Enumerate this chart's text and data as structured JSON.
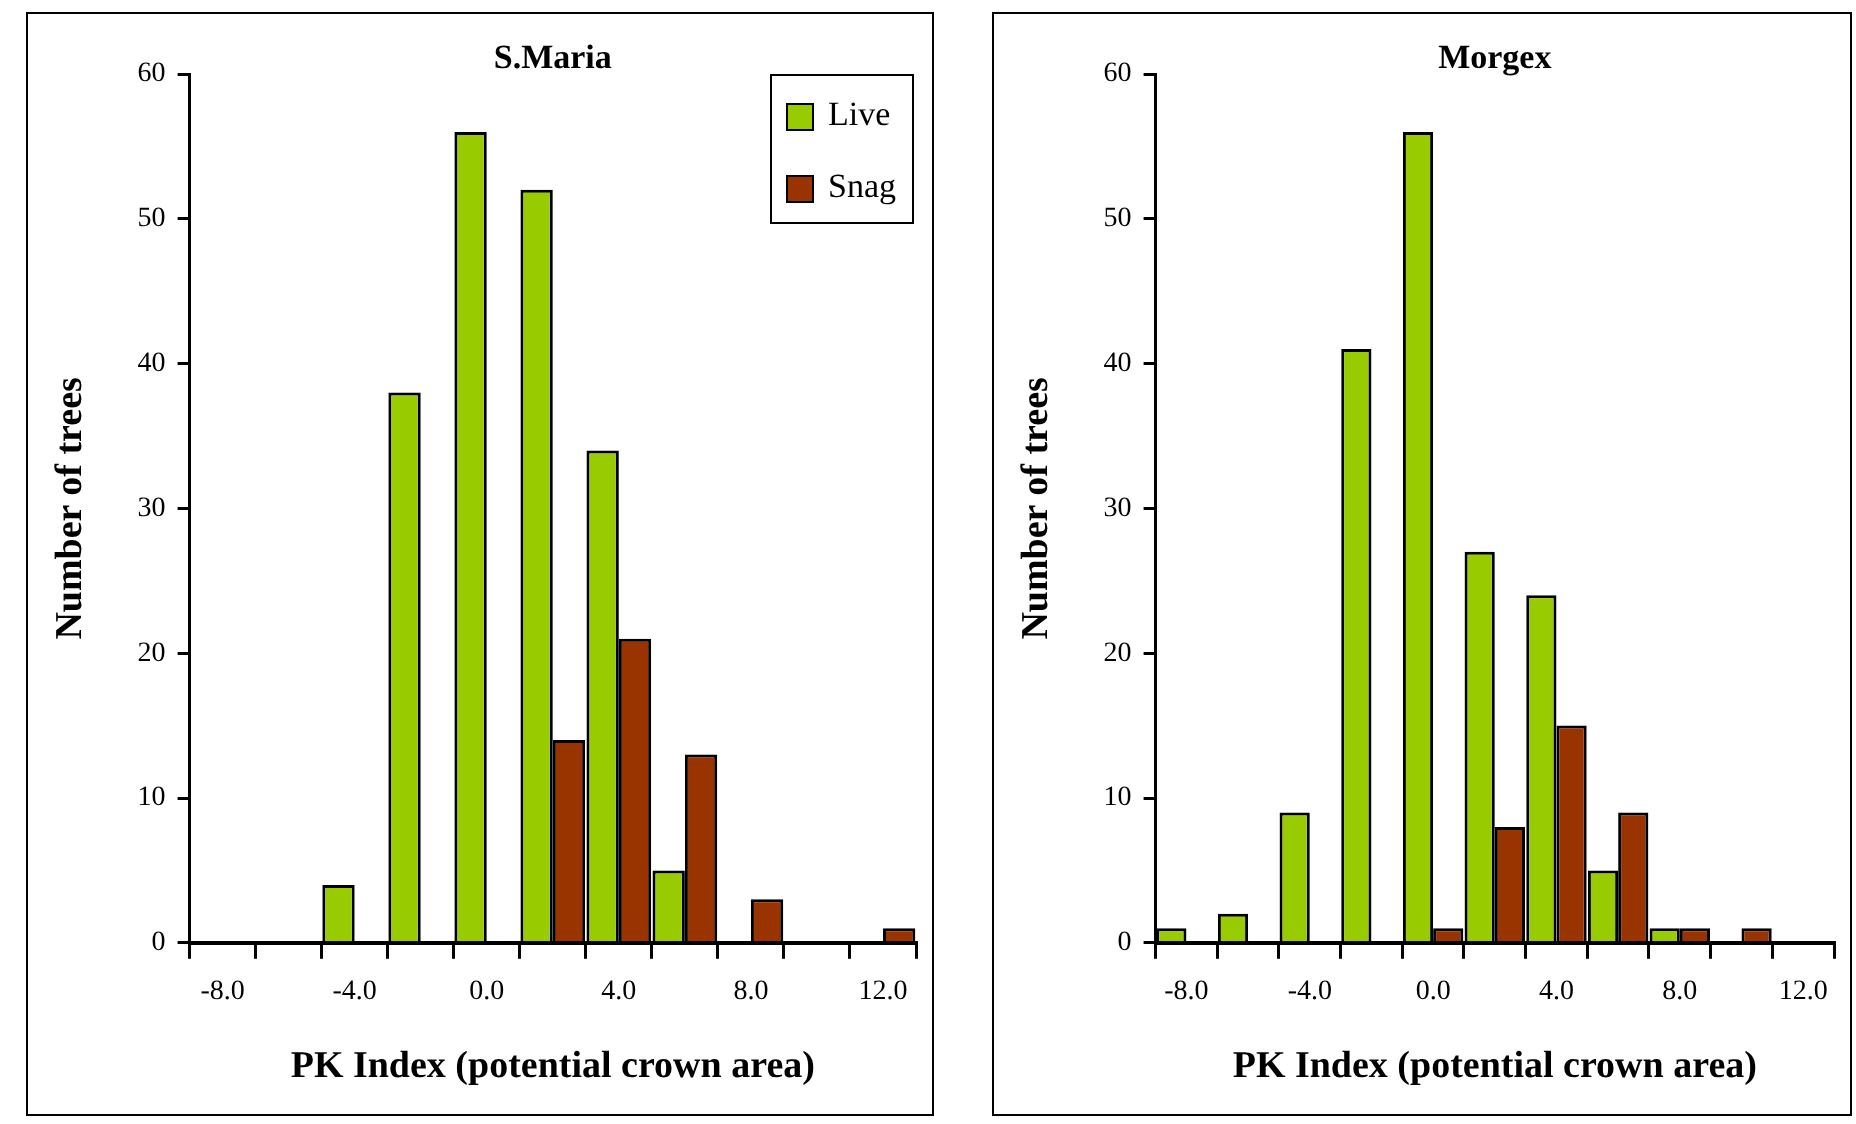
{
  "chart_data": [
    {
      "type": "bar",
      "title": "S.Maria",
      "xlabel": "PK Index (potential crown area)",
      "ylabel": "Number of trees",
      "categories": [
        "-8.0",
        null,
        "-4.0",
        null,
        "0.0",
        null,
        "4.0",
        null,
        "8.0",
        null,
        "12.0"
      ],
      "series": [
        {
          "name": "Live",
          "color": "#99cc00",
          "values": [
            0,
            0,
            4,
            38,
            56,
            52,
            34,
            5,
            0,
            0,
            0
          ]
        },
        {
          "name": "Snag",
          "color": "#993300",
          "values": [
            0,
            0,
            0,
            0,
            0,
            14,
            21,
            13,
            3,
            0,
            1
          ]
        }
      ],
      "ylim": [
        0,
        60
      ],
      "yticks": [
        0,
        10,
        20,
        30,
        40,
        50,
        60
      ],
      "grid": false,
      "legend": "top right"
    },
    {
      "type": "bar",
      "title": "Morgex",
      "xlabel": "PK Index (potential crown area)",
      "ylabel": "Number of trees",
      "categories": [
        "-8.0",
        null,
        "-4.0",
        null,
        "0.0",
        null,
        "4.0",
        null,
        "8.0",
        null,
        "12.0"
      ],
      "series": [
        {
          "color": "#99cc00",
          "values": [
            1,
            2,
            9,
            41,
            56,
            27,
            24,
            5,
            1,
            0,
            0
          ]
        },
        {
          "color": "#993300",
          "values": [
            0,
            0,
            0,
            0,
            1,
            8,
            15,
            9,
            1,
            1,
            0
          ]
        }
      ],
      "ylim": [
        0,
        60
      ],
      "yticks": [
        0,
        10,
        20,
        30,
        40,
        50,
        60
      ],
      "grid": false,
      "legend": false
    }
  ]
}
